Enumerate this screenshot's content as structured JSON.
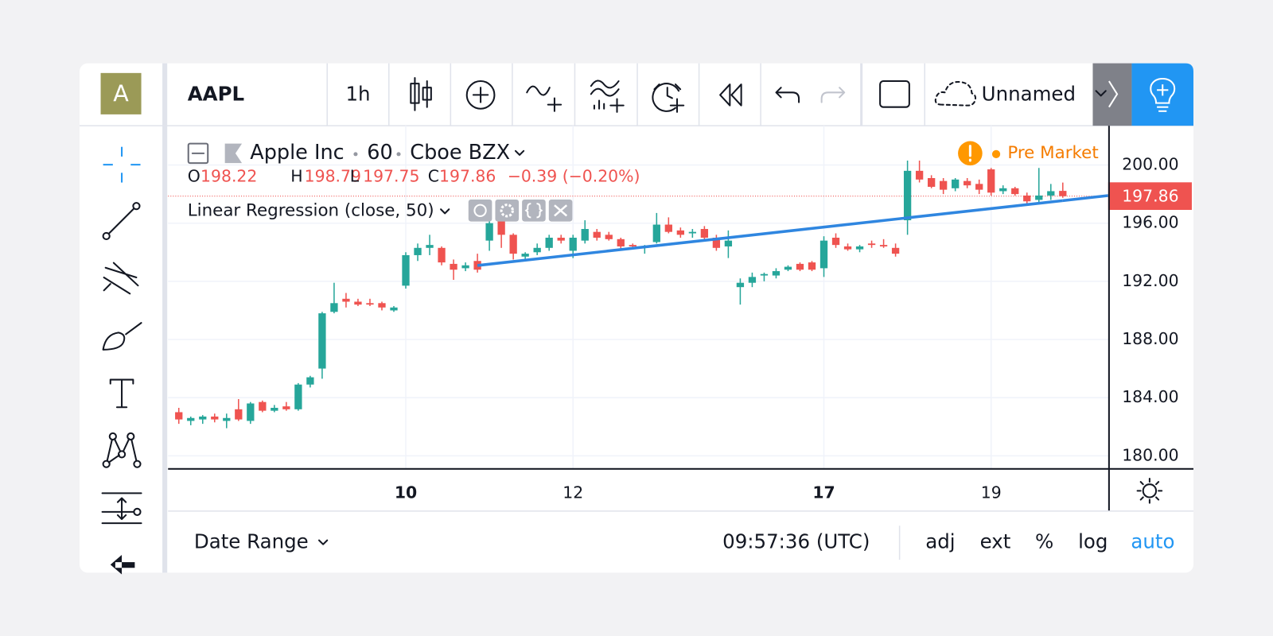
{
  "toolbar": {
    "logo": "A",
    "symbol": "AAPL",
    "interval": "1h",
    "layout_name": "Unnamed"
  },
  "chart_data": {
    "type": "candlestick",
    "title": "Apple Inc",
    "interval": "60",
    "exchange": "Cboe BZX",
    "session": "Pre Market",
    "legend": {
      "labels": [
        "O",
        "H",
        "L",
        "C"
      ],
      "values": [
        198.22,
        198.79,
        197.75,
        197.86
      ],
      "change": "−0.39 (−0.20%)"
    },
    "up_color": "#26a69a",
    "down_color": "#ef5350",
    "open": [
      183.0,
      182.4,
      182.5,
      182.7,
      182.4,
      183.2,
      182.4,
      183.7,
      183.1,
      183.4,
      183.2,
      184.9,
      186.0,
      189.9,
      190.8,
      190.6,
      190.5,
      190.5,
      190.0,
      191.7,
      193.8,
      194.3,
      194.3,
      193.2,
      192.9,
      193.4,
      194.8,
      196.2,
      195.2,
      193.7,
      194.0,
      194.3,
      195.0,
      194.1,
      194.8,
      195.4,
      195.2,
      194.9,
      194.5,
      194.3,
      194.7,
      195.9,
      195.5,
      195.3,
      195.6,
      195.0,
      194.4,
      191.6,
      191.9,
      192.4,
      192.4,
      192.8,
      193.2,
      193.3,
      192.9,
      195.0,
      194.4,
      194.2,
      194.6,
      194.5,
      194.3,
      196.2,
      199.6,
      199.1,
      198.9,
      198.4,
      198.9,
      198.7,
      199.7,
      198.2,
      198.4,
      197.9,
      197.6,
      197.9,
      198.22
    ],
    "high": [
      183.3,
      182.7,
      182.8,
      182.9,
      182.9,
      183.9,
      183.7,
      183.8,
      183.5,
      183.7,
      185.0,
      185.5,
      189.9,
      191.9,
      191.2,
      190.8,
      190.8,
      190.6,
      190.3,
      194.0,
      194.6,
      195.2,
      194.4,
      193.5,
      193.3,
      193.9,
      196.2,
      196.3,
      195.3,
      194.0,
      194.6,
      195.2,
      195.2,
      195.2,
      196.2,
      195.6,
      195.4,
      195.0,
      194.6,
      194.5,
      196.7,
      196.4,
      195.7,
      195.6,
      195.8,
      195.2,
      195.5,
      192.2,
      192.6,
      192.6,
      192.9,
      193.1,
      193.3,
      193.4,
      195.1,
      195.3,
      194.6,
      194.5,
      194.8,
      194.9,
      194.6,
      200.3,
      200.3,
      199.3,
      199.1,
      199.1,
      199.1,
      199.0,
      199.8,
      198.6,
      198.5,
      198.1,
      199.8,
      198.7,
      198.79
    ],
    "low": [
      182.2,
      182.1,
      182.2,
      182.3,
      181.9,
      182.4,
      182.2,
      183.0,
      183.0,
      183.1,
      183.1,
      184.7,
      185.3,
      189.8,
      190.2,
      190.3,
      190.3,
      190.0,
      189.9,
      191.5,
      193.4,
      193.8,
      193.1,
      192.1,
      192.7,
      192.6,
      194.1,
      194.3,
      193.5,
      193.5,
      193.8,
      194.1,
      194.6,
      193.6,
      194.6,
      194.8,
      194.8,
      194.2,
      194.2,
      193.9,
      194.6,
      195.3,
      195.0,
      195.0,
      194.9,
      194.1,
      193.6,
      190.4,
      191.6,
      192.0,
      192.2,
      192.7,
      192.7,
      192.7,
      192.3,
      194.3,
      194.1,
      194.0,
      194.3,
      194.3,
      193.7,
      195.2,
      198.8,
      198.4,
      198.0,
      198.2,
      198.4,
      198.0,
      197.9,
      198.0,
      197.9,
      197.3,
      197.4,
      197.6,
      197.75
    ],
    "close": [
      182.5,
      182.6,
      182.7,
      182.5,
      182.6,
      182.5,
      183.6,
      183.1,
      183.3,
      183.2,
      184.9,
      185.4,
      189.8,
      190.5,
      190.6,
      190.4,
      190.4,
      190.2,
      190.2,
      193.8,
      194.3,
      194.5,
      193.3,
      192.8,
      193.1,
      192.8,
      196.0,
      195.2,
      193.9,
      193.9,
      194.3,
      195.0,
      194.8,
      195.0,
      195.6,
      195.0,
      194.9,
      194.4,
      194.4,
      194.4,
      195.9,
      195.4,
      195.2,
      195.4,
      195.0,
      194.3,
      194.8,
      191.9,
      192.3,
      192.5,
      192.7,
      193.0,
      192.8,
      192.8,
      194.8,
      194.5,
      194.2,
      194.4,
      194.5,
      194.4,
      193.9,
      199.6,
      199.0,
      198.5,
      198.3,
      199.0,
      198.6,
      198.3,
      198.1,
      198.4,
      198.0,
      197.5,
      197.9,
      198.2,
      197.86
    ],
    "indicator": {
      "name": "Linear Regression (close, 50)",
      "color": "#2f86e0",
      "x": [
        25,
        74
      ],
      "values": [
        193.09,
        197.55
      ]
    },
    "last_price": 197.86,
    "last_price_color": "#ef5350",
    "xlim": [
      -0.9,
      77.8
    ],
    "xticks": [
      {
        "value": 19,
        "label": "10"
      },
      {
        "value": 33,
        "label": "12"
      },
      {
        "value": 54,
        "label": "17"
      },
      {
        "value": 68,
        "label": "19"
      }
    ],
    "ylim": [
      179.1,
      202.7
    ],
    "yticks": [
      {
        "value": 180,
        "label": "180.00"
      },
      {
        "value": 184,
        "label": "184.00"
      },
      {
        "value": 188,
        "label": "188.00"
      },
      {
        "value": 192,
        "label": "192.00"
      },
      {
        "value": 196,
        "label": "196.00"
      },
      {
        "value": 200,
        "label": "200.00"
      }
    ],
    "grid": true
  },
  "footer": {
    "date_range": "Date Range",
    "time": "09:57:36 (UTC)",
    "options": [
      "adj",
      "ext",
      "%",
      "log",
      "auto"
    ]
  }
}
